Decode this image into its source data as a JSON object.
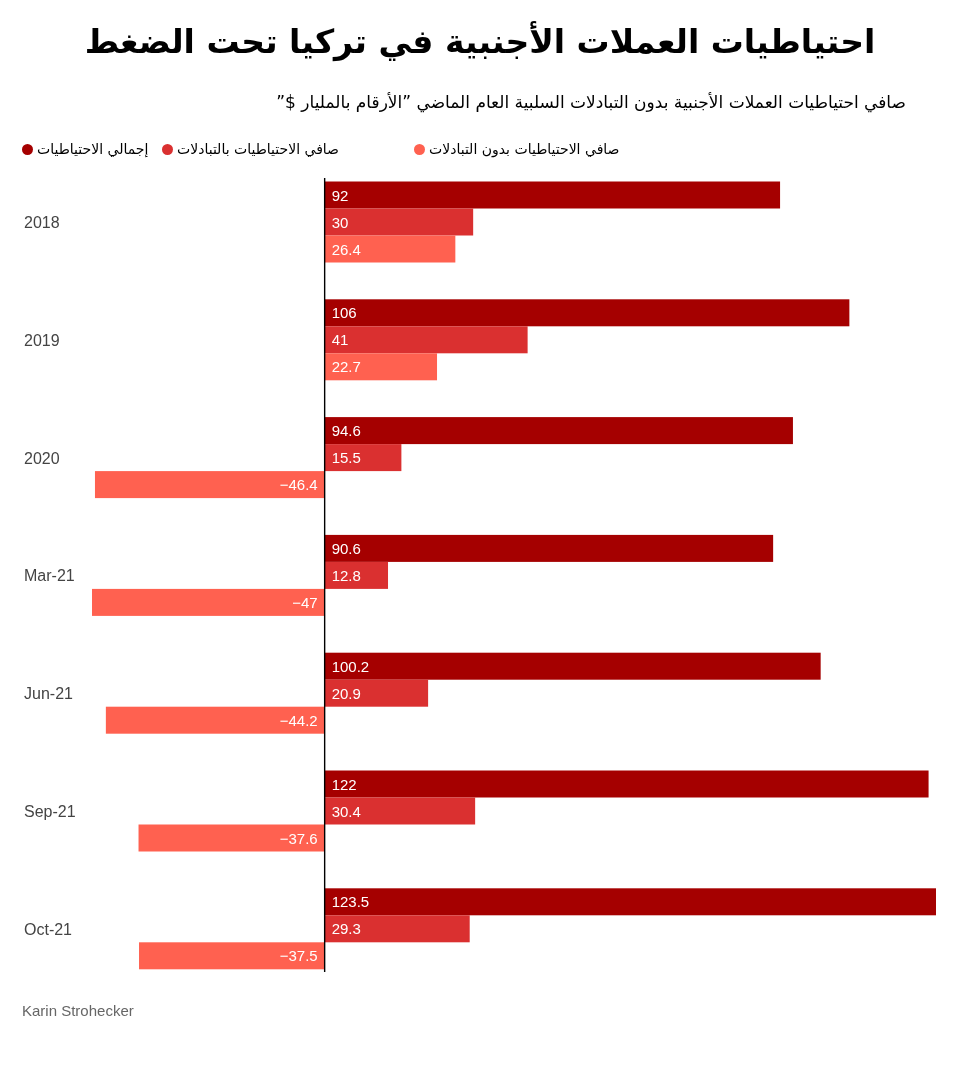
{
  "chart_data": {
    "type": "bar",
    "orientation": "horizontal",
    "title": "احتياطيات العملات الأجنبية في تركيا تحت الضغط",
    "subtitle": "صافي احتياطيات العملات الأجنبية بدون التبادلات السلبية العام الماضي ”الأرقام بالمليار $”",
    "categories": [
      "2018",
      "2019",
      "2020",
      "Mar-21",
      "Jun-21",
      "Sep-21",
      "Oct-21"
    ],
    "series": [
      {
        "name": "إجمالي الاحتياطيات",
        "color": "#a50000",
        "values": [
          92,
          106,
          94.6,
          90.6,
          100.2,
          122,
          123.5
        ]
      },
      {
        "name": "صافي الاحتياطيات بالتبادلات",
        "color": "#da3030",
        "values": [
          30,
          41,
          15.5,
          12.8,
          20.9,
          30.4,
          29.3
        ]
      },
      {
        "name": "صافي الاحتياطيات بدون التبادلات",
        "color": "#ff6150",
        "values": [
          26.4,
          22.7,
          -46.4,
          -47,
          -44.2,
          -37.6,
          -37.5
        ]
      }
    ],
    "tick_labels": "y",
    "data_labels": true,
    "legend": "top",
    "annotations": [
      "Karin Strohecker"
    ]
  }
}
